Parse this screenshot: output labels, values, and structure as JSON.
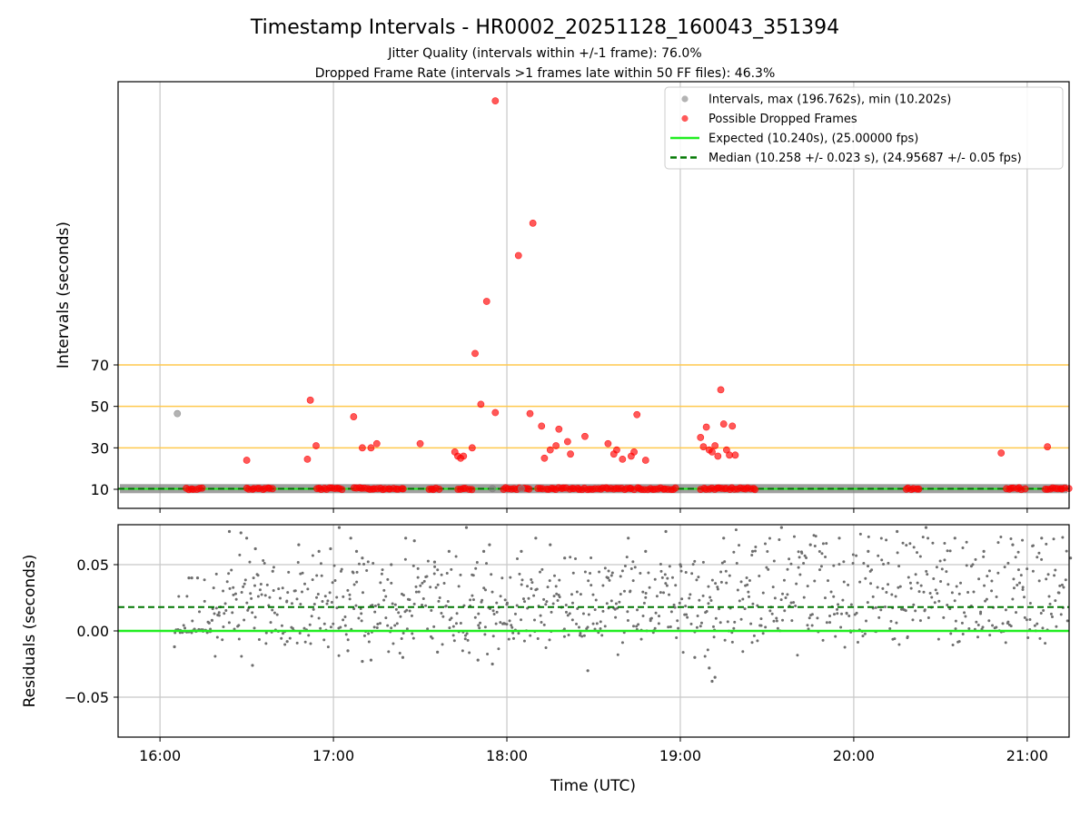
{
  "chart_data": {
    "title": "Timestamp Intervals - HR0002_20251128_160043_351394",
    "subtitle_lines": [
      "Jitter Quality (intervals within +/-1 frame): 76.0%",
      "Dropped Frame Rate (intervals >1 frames late within 50 FF files): 46.3%"
    ],
    "xlabel": "Time (UTC)",
    "x_tick_labels": [
      "16:00",
      "17:00",
      "18:00",
      "19:00",
      "20:00",
      "21:00"
    ],
    "colors": {
      "normal": "#808080",
      "dropped": "#ff0000",
      "expected": "#22ee22",
      "median": "#007700",
      "threshold": "#ffc94d",
      "grid": "#c8c8c8"
    },
    "panels": [
      {
        "name": "intervals",
        "type": "scatter",
        "ylabel": "Intervals (seconds)",
        "y_ticks": [
          10,
          30,
          50,
          70
        ],
        "threshold_lines": [
          30,
          50,
          70
        ],
        "expected": 10.24,
        "median": 10.258,
        "legend_position": "top-right",
        "legend": [
          "Intervals, max (196.762s), min (10.202s)",
          "Possible Dropped Frames",
          "Expected (10.240s), (25.00000 fps)",
          "Median (10.258 +/- 0.023 s), (24.95687 +/- 0.05 fps)"
        ],
        "series": [
          {
            "name": "Intervals, max (196.762s), min (10.202s)",
            "points": [
              [
                "16:06",
                46.5
              ],
              [
                "17:55",
                10.3
              ],
              [
                "18:05",
                10.3
              ]
            ]
          },
          {
            "name": "Possible Dropped Frames",
            "points": [
              [
                "16:30",
                24
              ],
              [
                "16:51",
                24.5
              ],
              [
                "16:52",
                53
              ],
              [
                "16:54",
                31
              ],
              [
                "17:07",
                45
              ],
              [
                "17:10",
                30
              ],
              [
                "17:13",
                30
              ],
              [
                "17:15",
                32
              ],
              [
                "17:30",
                32
              ],
              [
                "17:42",
                28
              ],
              [
                "17:43",
                26
              ],
              [
                "17:44",
                25
              ],
              [
                "17:45",
                26
              ],
              [
                "17:48",
                30
              ],
              [
                "17:49",
                75.5
              ],
              [
                "17:51",
                51
              ],
              [
                "17:53",
                100.5
              ],
              [
                "17:56",
                47
              ],
              [
                "17:56",
                196.7
              ],
              [
                "18:04",
                122.5
              ],
              [
                "18:08",
                46.5
              ],
              [
                "18:09",
                138
              ],
              [
                "18:12",
                40.5
              ],
              [
                "18:13",
                25
              ],
              [
                "18:15",
                29
              ],
              [
                "18:17",
                31
              ],
              [
                "18:18",
                39
              ],
              [
                "18:21",
                33
              ],
              [
                "18:22",
                27
              ],
              [
                "18:27",
                35.5
              ],
              [
                "18:35",
                32
              ],
              [
                "18:37",
                27
              ],
              [
                "18:38",
                29
              ],
              [
                "18:40",
                24.5
              ],
              [
                "18:43",
                26
              ],
              [
                "18:44",
                28
              ],
              [
                "18:45",
                46
              ],
              [
                "18:48",
                24
              ],
              [
                "19:07",
                35
              ],
              [
                "19:08",
                30.5
              ],
              [
                "19:09",
                40
              ],
              [
                "19:10",
                29
              ],
              [
                "19:11",
                28
              ],
              [
                "19:12",
                31
              ],
              [
                "19:13",
                26
              ],
              [
                "19:14",
                58
              ],
              [
                "19:15",
                41.5
              ],
              [
                "19:16",
                29
              ],
              [
                "19:17",
                26.5
              ],
              [
                "19:18",
                40.5
              ],
              [
                "19:19",
                26.5
              ],
              [
                "20:51",
                27.5
              ],
              [
                "21:07",
                30.5
              ]
            ]
          }
        ]
      },
      {
        "name": "residuals",
        "type": "scatter",
        "ylabel": "Residuals (seconds)",
        "y_tick_labels": [
          "0.05",
          "0.00",
          "−0.05"
        ],
        "y_tick_values": [
          0.05,
          0.0,
          -0.05
        ],
        "ylim": [
          -0.08,
          0.08
        ],
        "expected": 0.0,
        "median": 0.018,
        "series": [
          {
            "name": "residuals",
            "points": [
              [
                "16:10",
                0.04
              ],
              [
                "16:11",
                0.04
              ],
              [
                "16:13",
                0.04
              ],
              [
                "16:05",
                -0.012
              ],
              [
                "16:17",
                0.006
              ],
              [
                "16:18",
                0.008
              ],
              [
                "16:20",
                0.012
              ],
              [
                "16:24",
                0.075
              ],
              [
                "16:28",
                0.074
              ],
              [
                "16:30",
                0.07
              ],
              [
                "16:33",
                0.062
              ],
              [
                "16:39",
                0.045
              ],
              [
                "16:48",
                0.065
              ],
              [
                "16:55",
                0.06
              ],
              [
                "16:59",
                0.062
              ],
              [
                "17:02",
                0.078
              ],
              [
                "17:06",
                0.07
              ],
              [
                "17:08",
                0.06
              ],
              [
                "17:10",
                0.055
              ],
              [
                "17:20",
                0.05
              ],
              [
                "17:25",
                0.07
              ],
              [
                "17:28",
                0.068
              ],
              [
                "17:35",
                0.052
              ],
              [
                "17:40",
                0.06
              ],
              [
                "17:46",
                0.078
              ],
              [
                "17:52",
                0.06
              ],
              [
                "17:54",
                0.065
              ],
              [
                "16:32",
                -0.026
              ],
              [
                "16:44",
                -0.008
              ],
              [
                "17:05",
                -0.015
              ],
              [
                "17:10",
                -0.023
              ],
              [
                "17:13",
                -0.022
              ],
              [
                "17:24",
                -0.02
              ],
              [
                "17:36",
                -0.016
              ],
              [
                "17:50",
                -0.022
              ],
              [
                "17:55",
                -0.025
              ],
              [
                "18:00",
                0.02
              ],
              [
                "18:05",
                0.06
              ],
              [
                "18:10",
                0.07
              ],
              [
                "18:15",
                0.065
              ],
              [
                "18:20",
                0.055
              ],
              [
                "18:28",
                -0.03
              ],
              [
                "18:35",
                0.04
              ],
              [
                "18:42",
                0.07
              ],
              [
                "18:48",
                0.06
              ],
              [
                "18:55",
                0.075
              ],
              [
                "19:00",
                0.05
              ],
              [
                "19:05",
                -0.02
              ],
              [
                "19:10",
                -0.028
              ],
              [
                "19:11",
                -0.038
              ],
              [
                "19:12",
                -0.035
              ],
              [
                "19:15",
                0.07
              ],
              [
                "19:25",
                0.06
              ],
              [
                "19:35",
                0.078
              ],
              [
                "19:45",
                0.065
              ],
              [
                "19:55",
                0.07
              ],
              [
                "20:05",
                0.06
              ],
              [
                "20:15",
                0.075
              ],
              [
                "20:25",
                0.078
              ],
              [
                "20:35",
                0.07
              ],
              [
                "20:45",
                0.06
              ],
              [
                "20:55",
                0.065
              ],
              [
                "21:05",
                0.07
              ],
              [
                "21:15",
                0.055
              ]
            ]
          }
        ]
      }
    ]
  }
}
